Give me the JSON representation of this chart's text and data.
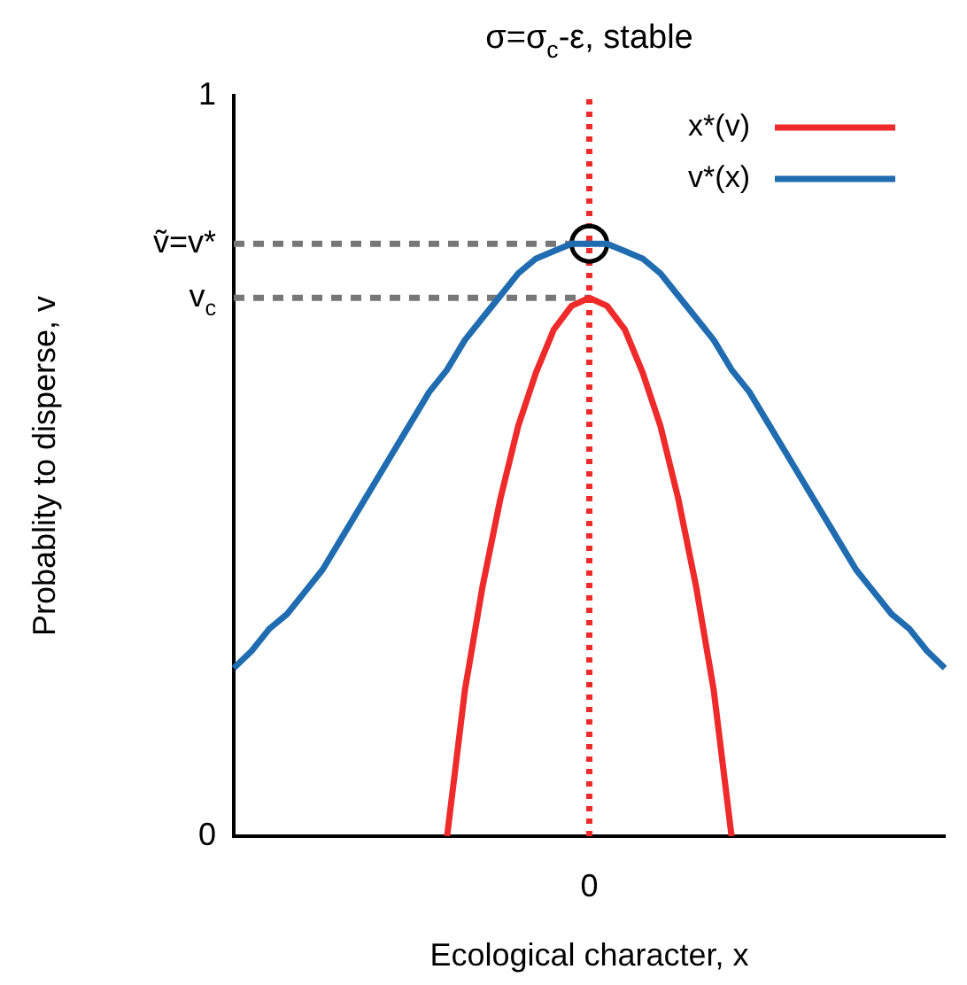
{
  "chart_data": {
    "type": "line",
    "title": "σ=σ$_{c}$-ε, stable",
    "xlabel": "Ecological character, x",
    "ylabel": "Probablity to disperse, v",
    "categories": [
      null,
      null,
      null,
      null,
      null,
      null,
      null,
      null,
      null,
      null,
      null,
      null,
      null,
      null,
      null,
      null,
      null,
      null,
      null,
      null,
      "0",
      null,
      null,
      null,
      null,
      null,
      null,
      null,
      null,
      null,
      null,
      null,
      null,
      null,
      null,
      null,
      null,
      null,
      null,
      null,
      null
    ],
    "ylim": [
      0,
      1
    ],
    "yticks": [
      0,
      {
        "value": 0.727,
        "label": "v$_{c}$"
      },
      {
        "value": 0.8,
        "label": "ṽ=v*"
      },
      1
    ],
    "grid": false,
    "legend": "top right",
    "marker": "none",
    "line_style": "solid",
    "ref_lines": [
      {
        "axis": "x",
        "value": "0",
        "color": "#ee2a2a",
        "line_style": "dotted"
      }
    ],
    "series": [
      {
        "name": "x*(v)",
        "color": "#ee2a2a",
        "values": [
          null,
          null,
          null,
          null,
          null,
          null,
          null,
          null,
          null,
          null,
          null,
          null,
          0,
          0.197,
          0.338,
          0.456,
          0.554,
          0.626,
          0.684,
          0.716,
          0.727,
          0.716,
          0.684,
          0.626,
          0.554,
          0.456,
          0.338,
          0.197,
          0,
          null,
          null,
          null,
          null,
          null,
          null,
          null,
          null,
          null,
          null,
          null,
          null
        ]
      },
      {
        "name": "v*(x)",
        "color": "#1f6cb0",
        "values": [
          0.227,
          0.25,
          0.28,
          0.3,
          0.33,
          0.36,
          0.4,
          0.44,
          0.48,
          0.52,
          0.56,
          0.6,
          0.63,
          0.67,
          0.7,
          0.73,
          0.76,
          0.78,
          0.79,
          0.8,
          0.8,
          0.8,
          0.79,
          0.78,
          0.76,
          0.73,
          0.7,
          0.67,
          0.63,
          0.6,
          0.56,
          0.52,
          0.48,
          0.44,
          0.4,
          0.36,
          0.33,
          0.3,
          0.28,
          0.25,
          0.227
        ]
      },
      {
        "color": "#777777",
        "line_style": "dashed",
        "values": [
          0.8,
          0.8,
          0.8,
          0.8,
          0.8,
          0.8,
          0.8,
          0.8,
          0.8,
          0.8,
          0.8,
          0.8,
          0.8,
          0.8,
          0.8,
          0.8,
          0.8,
          0.8,
          0.8,
          0.8,
          0.8,
          null,
          null,
          null,
          null,
          null,
          null,
          null,
          null,
          null,
          null,
          null,
          null,
          null,
          null,
          null,
          null,
          null,
          null,
          null,
          null
        ]
      },
      {
        "color": "#777777",
        "line_style": "dashed",
        "values": [
          0.727,
          0.727,
          0.727,
          0.727,
          0.727,
          0.727,
          0.727,
          0.727,
          0.727,
          0.727,
          0.727,
          0.727,
          0.727,
          0.727,
          0.727,
          0.727,
          0.727,
          0.727,
          0.727,
          0.727,
          0.727,
          null,
          null,
          null,
          null,
          null,
          null,
          null,
          null,
          null,
          null,
          null,
          null,
          null,
          null,
          null,
          null,
          null,
          null,
          null,
          null
        ]
      },
      {
        "type": "scatter",
        "color": "#000000",
        "marker": "circle",
        "values": [
          null,
          null,
          null,
          null,
          null,
          null,
          null,
          null,
          null,
          null,
          null,
          null,
          null,
          null,
          null,
          null,
          null,
          null,
          null,
          null,
          0.8,
          null,
          null,
          null,
          null,
          null,
          null,
          null,
          null,
          null,
          null,
          null,
          null,
          null,
          null,
          null,
          null,
          null,
          null,
          null,
          null
        ]
      }
    ]
  }
}
